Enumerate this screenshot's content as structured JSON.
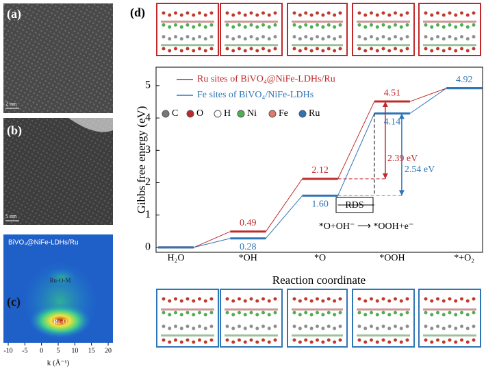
{
  "panels": {
    "a": {
      "label": "(a)",
      "scale": "2 nm"
    },
    "b": {
      "label": "(b)",
      "scale": "5 nm"
    },
    "c": {
      "label": "(c)",
      "title": "BiVO₄@NiFe-LDHs/Ru",
      "peaks": [
        "Ru-O-M",
        "Ru-O"
      ],
      "xticks": [
        -10,
        -5,
        0,
        5,
        10,
        15,
        20
      ],
      "xlabel": "k (Å⁻¹)"
    },
    "d": {
      "label": "(d)"
    }
  },
  "atom_legend": [
    "C",
    "O",
    "H",
    "Ni",
    "Fe",
    "Ru"
  ],
  "chart_data": {
    "type": "line",
    "ylabel": "Gibbs free energy (eV)",
    "xlabel": "Reaction coordinate",
    "categories": [
      "H₂O",
      "*OH",
      "*O",
      "*OOH",
      "*+O₂"
    ],
    "series": [
      {
        "name": "Ru sites of BiVO₄@NiFe-LDHs/Ru",
        "color": "#c0282a",
        "values": [
          0,
          0.49,
          2.12,
          4.51,
          4.92
        ],
        "value_labels": [
          null,
          "0.49",
          "2.12",
          "4.51",
          null
        ]
      },
      {
        "name": "Fe sites of BiVO₄/NiFe-LDHs",
        "color": "#2e75b6",
        "values": [
          0,
          0.28,
          1.6,
          4.14,
          4.92
        ],
        "value_labels": [
          null,
          "0.28",
          "1.60",
          "4.14",
          "4.92"
        ]
      }
    ],
    "ylim": [
      -0.15,
      5.57
    ],
    "yticks": [
      0,
      1,
      2,
      3,
      4,
      5
    ],
    "annotations": {
      "ru_gap": "2.39 eV",
      "fe_gap": "2.54 eV",
      "rds": "RDS",
      "reaction": "*O+OH⁻ ⟶ *OOH+e⁻"
    }
  }
}
